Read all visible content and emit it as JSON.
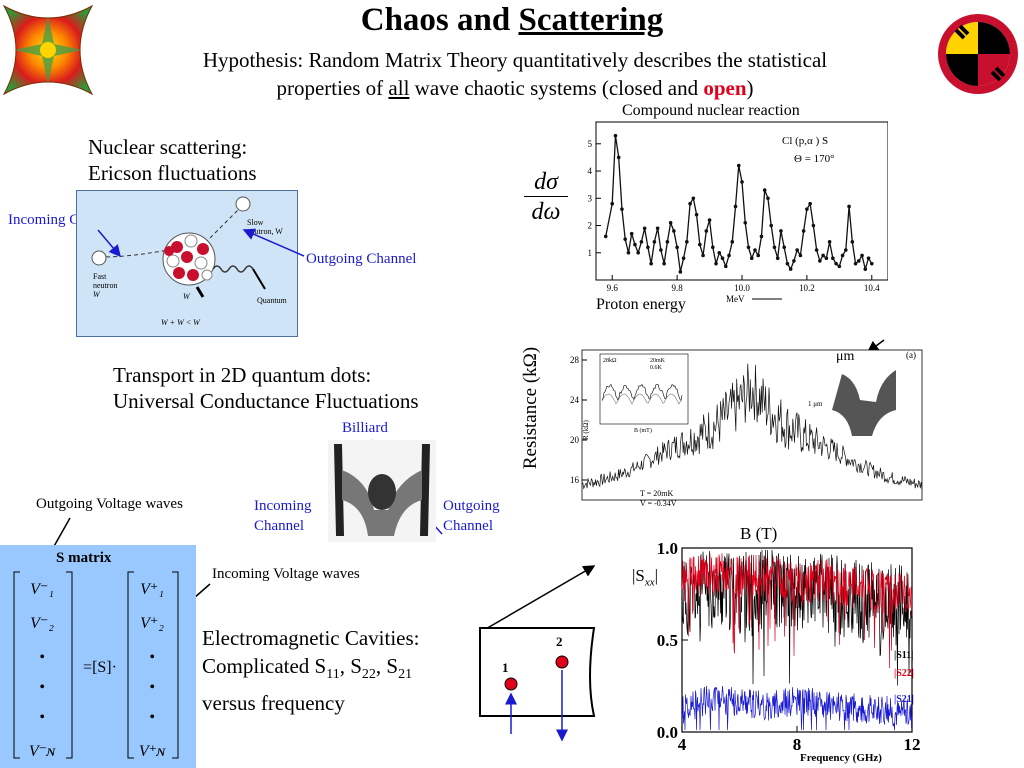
{
  "title": {
    "prefix": "Chaos and ",
    "underlined": "Scattering"
  },
  "hypothesis": {
    "line1": "Hypothesis: Random Matrix Theory quantitatively describes the statistical",
    "line2_a": "properties of ",
    "line2_all": "all",
    "line2_b": " wave chaotic systems (closed and ",
    "line2_open": "open",
    "line2_c": ")"
  },
  "nuclear": {
    "heading1": "Nuclear scattering:",
    "heading2": "Ericson fluctuations",
    "incoming_label": "Incoming Channel",
    "outgoing_label": "Outgoing Channel",
    "diagram": {
      "slow_neutron": "Slow",
      "slow_neutron2": "neutron, W",
      "fast_neutron": "Fast",
      "fast_neutron2": "neutron",
      "w_i": "W",
      "w_g": "W",
      "quantum": "Quantum",
      "inequality": "W + W < W"
    }
  },
  "compound": {
    "caption": "Compound nuclear reaction",
    "reaction": "Cl  (p,α ) S",
    "angle": "Θ = 170°",
    "y_symbol_num": "dσ",
    "y_symbol_den": "dω",
    "xlabel": "Proton energy",
    "x_unit": "MeV"
  },
  "transport": {
    "heading1": "Transport in 2D quantum dots:",
    "heading2": "Universal Conductance Fluctuations",
    "billiard_label": "Billiard",
    "incoming_label": "Incoming Channel",
    "incoming_l1": "Incoming",
    "incoming_l2": "Channel",
    "outgoing_l1": "Outgoing",
    "outgoing_l2": "Channel",
    "outgoing_voltage": "Outgoing Voltage waves",
    "ylabel": "Resistance (kΩ)",
    "xlabel": "B (T)",
    "scale_label": "μm",
    "panel_a": "(a)",
    "inset_units": "28kΩ",
    "inset_legend1": "20mK",
    "inset_legend2": "0.6K",
    "inset_xlabel": "B (mT)",
    "main_ylabel": "R (kΩ)",
    "cond1": "T = 20mK",
    "cond2": "V  = -0.34V",
    "scale_bar": "1 μm"
  },
  "smatrix": {
    "title": "S matrix",
    "incoming_voltage": "Incoming Voltage waves",
    "left": [
      "V⁻₁",
      "V⁻₂",
      "•",
      "•",
      "•",
      "V⁻ɴ"
    ],
    "right": [
      "V⁺₁",
      "V⁺₂",
      "•",
      "•",
      "•",
      "V⁺ɴ"
    ],
    "middle": "=[S]·"
  },
  "em": {
    "line1": "Electromagnetic Cavities:",
    "line2": "Complicated S",
    "s11": "11",
    "s22": "22",
    "s21": "21",
    "line3": "versus frequency",
    "port1": "1",
    "port2": "2",
    "sxx": "|S",
    "sxx_sub": "xx",
    "sxx_end": "|",
    "xlabel": "Frequency (GHz)",
    "legend_s11": "|S11|",
    "legend_s22": "|S22|",
    "legend_s21": "|S21|",
    "colors": {
      "s11": "#000000",
      "s22": "#e0001b",
      "s21": "#1a1ad0"
    }
  },
  "chart_data": [
    {
      "type": "line",
      "title": "",
      "xlabel": "MeV",
      "ylabel": "",
      "x_ticks": [
        9.6,
        9.8,
        10.0,
        10.2,
        10.4
      ],
      "y_ticks": [
        1,
        2,
        3,
        4,
        5
      ],
      "xlim": [
        9.55,
        10.45
      ],
      "ylim": [
        0,
        5.8
      ],
      "series": [
        {
          "x": [
            9.58,
            9.6,
            9.61,
            9.62,
            9.63,
            9.64,
            9.65,
            9.66,
            9.67,
            9.68,
            9.69,
            9.7,
            9.71,
            9.72,
            9.73,
            9.74,
            9.75,
            9.76,
            9.77,
            9.78,
            9.79,
            9.8,
            9.81,
            9.82,
            9.83,
            9.84,
            9.85,
            9.86,
            9.87,
            9.88,
            9.89,
            9.9,
            9.91,
            9.92,
            9.93,
            9.94,
            9.95,
            9.96,
            9.97,
            9.98,
            9.99,
            10.0,
            10.01,
            10.02,
            10.03,
            10.04,
            10.05,
            10.06,
            10.07,
            10.08,
            10.09,
            10.1,
            10.11,
            10.12,
            10.13,
            10.14,
            10.15,
            10.16,
            10.17,
            10.18,
            10.19,
            10.2,
            10.21,
            10.22,
            10.23,
            10.24,
            10.25,
            10.26,
            10.27,
            10.28,
            10.29,
            10.3,
            10.31,
            10.32,
            10.33,
            10.34,
            10.35,
            10.36,
            10.37,
            10.38,
            10.39,
            10.4
          ],
          "y": [
            1.6,
            2.8,
            5.3,
            4.5,
            2.6,
            1.5,
            1.0,
            1.7,
            1.3,
            1.0,
            1.4,
            1.9,
            1.2,
            0.6,
            1.4,
            1.9,
            1.1,
            0.6,
            1.4,
            2.1,
            1.8,
            1.2,
            0.3,
            0.8,
            1.4,
            2.8,
            3.0,
            2.4,
            1.3,
            0.9,
            1.8,
            2.2,
            1.2,
            0.6,
            1.0,
            0.8,
            0.5,
            0.9,
            1.4,
            2.7,
            4.2,
            3.6,
            2.1,
            1.2,
            0.8,
            1.1,
            0.9,
            1.6,
            3.3,
            3.0,
            2.0,
            1.2,
            0.8,
            1.8,
            1.2,
            0.6,
            0.4,
            0.7,
            1.1,
            0.9,
            1.8,
            2.6,
            2.8,
            2.0,
            1.1,
            0.7,
            0.9,
            0.8,
            1.4,
            0.8,
            0.6,
            0.5,
            0.9,
            1.1,
            2.7,
            1.4,
            0.6,
            0.7,
            0.9,
            0.4,
            0.8,
            0.6
          ]
        }
      ]
    },
    {
      "type": "line",
      "title": "",
      "xlabel": "B (T)",
      "ylabel": "R (kΩ)",
      "y_ticks": [
        16,
        20,
        24,
        28
      ],
      "ylim": [
        14,
        29
      ],
      "series": [
        {
          "x": [
            -1.0,
            -0.9,
            -0.8,
            -0.7,
            -0.6,
            -0.5,
            -0.4,
            -0.3,
            -0.2,
            -0.1,
            0.0,
            0.1,
            0.2,
            0.3,
            0.4,
            0.5,
            0.6,
            0.7,
            0.8,
            0.9,
            1.0
          ],
          "y": [
            15.6,
            15.9,
            16.4,
            17.1,
            18.0,
            19.0,
            19.8,
            20.6,
            21.6,
            23.2,
            25.2,
            23.0,
            21.5,
            20.4,
            19.6,
            18.8,
            17.8,
            17.0,
            16.3,
            15.9,
            15.5
          ]
        }
      ]
    },
    {
      "type": "line",
      "title": "",
      "xlabel": "Frequency (GHz)",
      "ylabel": "|Sxx|",
      "x_ticks": [
        4,
        8,
        12
      ],
      "y_ticks": [
        0.0,
        0.5,
        1.0
      ],
      "xlim": [
        4,
        12
      ],
      "ylim": [
        0,
        1
      ],
      "series": [
        {
          "name": "|S11|",
          "x": [
            4,
            5,
            6,
            7,
            8,
            9,
            10,
            11,
            12
          ],
          "y": [
            0.72,
            0.78,
            0.75,
            0.8,
            0.74,
            0.76,
            0.72,
            0.7,
            0.68
          ]
        },
        {
          "name": "|S22|",
          "x": [
            4,
            5,
            6,
            7,
            8,
            9,
            10,
            11,
            12
          ],
          "y": [
            0.82,
            0.86,
            0.84,
            0.85,
            0.8,
            0.83,
            0.78,
            0.76,
            0.74
          ]
        },
        {
          "name": "|S21|",
          "x": [
            4,
            5,
            6,
            7,
            8,
            9,
            10,
            11,
            12
          ],
          "y": [
            0.12,
            0.18,
            0.16,
            0.14,
            0.17,
            0.15,
            0.13,
            0.12,
            0.1
          ]
        }
      ]
    }
  ]
}
